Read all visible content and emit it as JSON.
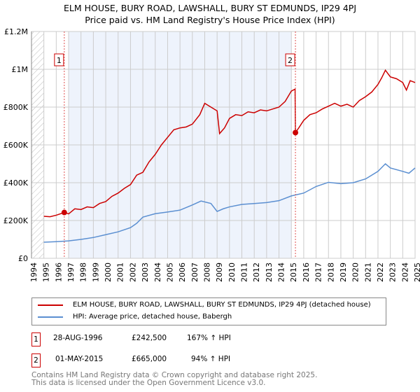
{
  "chart_data": {
    "type": "line",
    "title": "ELM HOUSE, BURY ROAD, LAWSHALL, BURY ST EDMUNDS, IP29 4PJ",
    "subtitle": "Price paid vs. HM Land Registry's House Price Index (HPI)",
    "xlim": [
      1994,
      2025
    ],
    "ylim": [
      0,
      1200000
    ],
    "x_ticks": [
      "1994",
      "1995",
      "1996",
      "1997",
      "1998",
      "1999",
      "2000",
      "2001",
      "2002",
      "2003",
      "2004",
      "2005",
      "2006",
      "2007",
      "2008",
      "2009",
      "2010",
      "2011",
      "2012",
      "2013",
      "2014",
      "2015",
      "2016",
      "2017",
      "2018",
      "2019",
      "2020",
      "2021",
      "2022",
      "2023",
      "2024",
      "2025"
    ],
    "y_ticks": [
      {
        "v": 0,
        "label": "£0"
      },
      {
        "v": 200000,
        "label": "£200K"
      },
      {
        "v": 400000,
        "label": "£400K"
      },
      {
        "v": 600000,
        "label": "£600K"
      },
      {
        "v": 800000,
        "label": "£800K"
      },
      {
        "v": 1000000,
        "label": "£1M"
      },
      {
        "v": 1200000,
        "label": "£1.2M"
      }
    ],
    "grid": true,
    "shaded_range": [
      1997,
      2015
    ],
    "series": [
      {
        "name": "ELM HOUSE, BURY ROAD, LAWSHALL, BURY ST EDMUNDS, IP29 4PJ (detached house)",
        "color": "#cc0000",
        "x": [
          1995,
          1995.5,
          1996,
          1996.65,
          1997,
          1997.5,
          1998,
          1998.5,
          1999,
          1999.5,
          2000,
          2000.5,
          2001,
          2001.5,
          2002,
          2002.5,
          2003,
          2003.5,
          2004,
          2004.5,
          2005,
          2005.5,
          2006,
          2006.5,
          2007,
          2007.6,
          2008,
          2008.5,
          2009,
          2009.2,
          2009.6,
          2010,
          2010.5,
          2011,
          2011.5,
          2012,
          2012.5,
          2013,
          2013.5,
          2014,
          2014.5,
          2015,
          2015.3,
          2015.33,
          2015.6,
          2016,
          2016.5,
          2017,
          2017.5,
          2018,
          2018.5,
          2019,
          2019.5,
          2020,
          2020.5,
          2021,
          2021.5,
          2022,
          2022.3,
          2022.6,
          2023,
          2023.5,
          2024,
          2024.3,
          2024.6,
          2025
        ],
        "y": [
          222000,
          220000,
          228000,
          242500,
          235000,
          262000,
          258000,
          272000,
          268000,
          290000,
          300000,
          328000,
          345000,
          370000,
          390000,
          440000,
          455000,
          510000,
          550000,
          600000,
          640000,
          680000,
          690000,
          695000,
          710000,
          760000,
          820000,
          800000,
          780000,
          660000,
          690000,
          740000,
          760000,
          755000,
          775000,
          770000,
          785000,
          780000,
          790000,
          800000,
          830000,
          885000,
          895000,
          665000,
          690000,
          730000,
          760000,
          770000,
          790000,
          805000,
          820000,
          805000,
          815000,
          800000,
          835000,
          855000,
          880000,
          920000,
          955000,
          995000,
          960000,
          950000,
          930000,
          890000,
          940000,
          930000
        ]
      },
      {
        "name": "HPI: Average price, detached house, Babergh",
        "color": "#5b8fd1",
        "x": [
          1995,
          1996,
          1997,
          1998,
          1999,
          2000,
          2001,
          2002,
          2002.5,
          2003,
          2004,
          2005,
          2006,
          2007,
          2007.7,
          2008.5,
          2009,
          2009.5,
          2010,
          2011,
          2012,
          2013,
          2014,
          2015,
          2016,
          2017,
          2018,
          2019,
          2020,
          2021,
          2022,
          2022.6,
          2023,
          2024,
          2024.5,
          2025
        ],
        "y": [
          85000,
          88000,
          92000,
          100000,
          110000,
          125000,
          140000,
          162000,
          185000,
          218000,
          236000,
          245000,
          255000,
          282000,
          303000,
          290000,
          248000,
          262000,
          272000,
          285000,
          290000,
          295000,
          305000,
          330000,
          345000,
          380000,
          402000,
          395000,
          400000,
          420000,
          460000,
          500000,
          478000,
          460000,
          450000,
          478000
        ]
      }
    ],
    "annotations": [
      {
        "id": "1",
        "x": 1996.65,
        "y": 242500
      },
      {
        "id": "2",
        "x": 2015.33,
        "y": 665000
      }
    ]
  },
  "legend": {
    "items": [
      "ELM HOUSE, BURY ROAD, LAWSHALL, BURY ST EDMUNDS, IP29 4PJ (detached house)",
      "HPI: Average price, detached house, Babergh"
    ]
  },
  "sales": [
    {
      "id": "1",
      "date": "28-AUG-1996",
      "price": "£242,500",
      "hpi": "167% ↑ HPI"
    },
    {
      "id": "2",
      "date": "01-MAY-2015",
      "price": "£665,000",
      "hpi": "94% ↑ HPI"
    }
  ],
  "footer": {
    "line1": "Contains HM Land Registry data © Crown copyright and database right 2025.",
    "line2": "This data is licensed under the Open Government Licence v3.0."
  }
}
